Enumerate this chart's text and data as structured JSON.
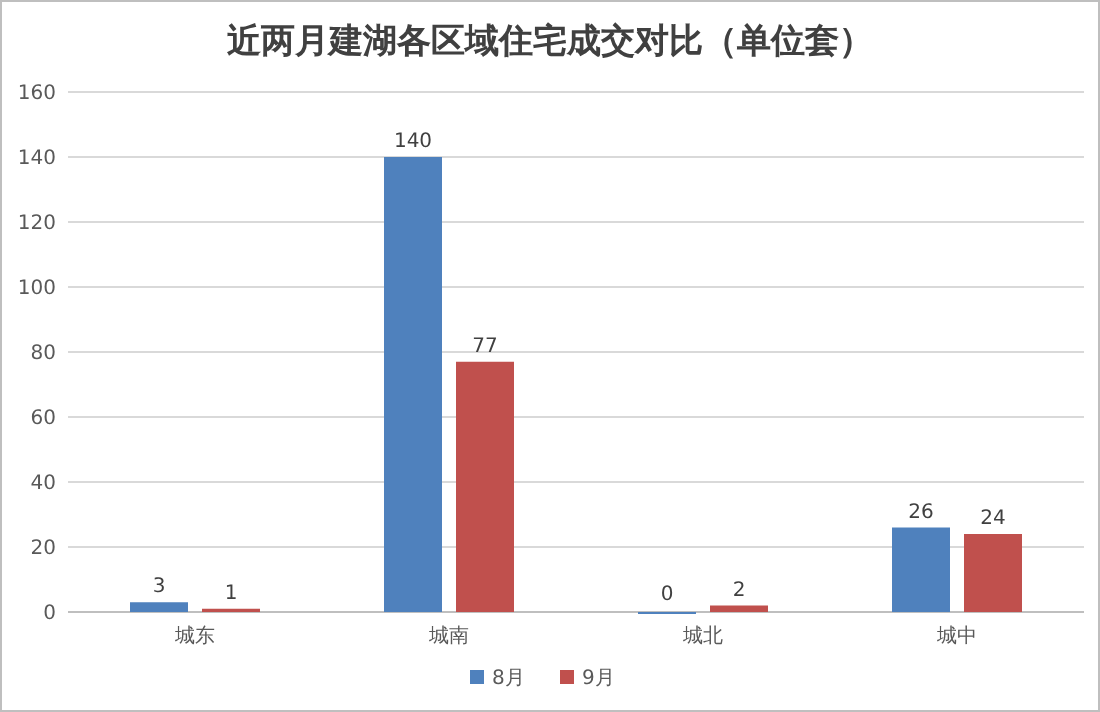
{
  "chart_data": {
    "type": "bar",
    "title": "近两月建湖各区域住宅成交对比（单位套）",
    "categories": [
      "城东",
      "城南",
      "城北",
      "城中"
    ],
    "series": [
      {
        "name": "8月",
        "color": "#4f81bd",
        "values": [
          3,
          140,
          0,
          26
        ]
      },
      {
        "name": "9月",
        "color": "#c0504d",
        "values": [
          1,
          77,
          2,
          24
        ]
      }
    ],
    "ylim": [
      0,
      160
    ],
    "yticks": [
      0,
      20,
      40,
      60,
      80,
      100,
      120,
      140,
      160
    ],
    "grid": "y",
    "legend": "bottom",
    "data_labels": true
  }
}
